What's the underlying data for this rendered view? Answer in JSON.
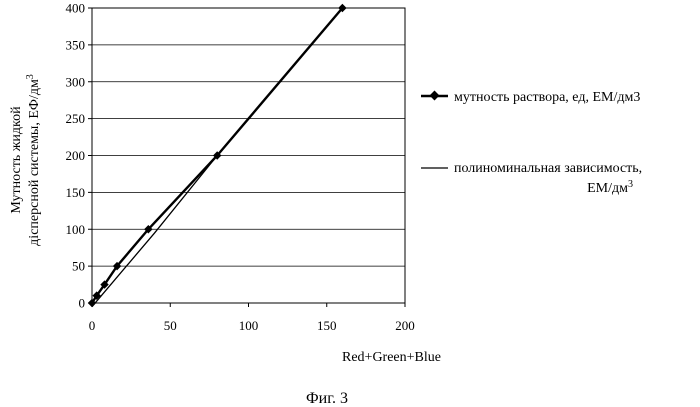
{
  "chart_data": {
    "type": "line",
    "xlabel": "Red+Green+Blue",
    "ylabel_line1": "Мутность жидкой",
    "ylabel_line2_prefix": "дісперсной системы, ЕФ/дм",
    "ylabel_line2_sup": "3",
    "xlim": [
      0,
      200
    ],
    "ylim": [
      0,
      400
    ],
    "xticks": [
      "0",
      "50",
      "100",
      "150",
      "200"
    ],
    "yticks": [
      "0",
      "50",
      "100",
      "150",
      "200",
      "250",
      "300",
      "350",
      "400"
    ],
    "grid": "horizontal",
    "legend_position": "right",
    "series": [
      {
        "name": "мутность раствора, ед, ЕМ/дм3",
        "marker": "diamond",
        "x": [
          0,
          3,
          8,
          16,
          36,
          80,
          160
        ],
        "y": [
          0,
          10,
          25,
          50,
          100,
          200,
          400
        ]
      },
      {
        "name_line1": "полиноминальная зависимость,",
        "name_line2_prefix": "ЕМ/дм",
        "name_line2_sup": "3",
        "marker": "none",
        "x": [
          0,
          40,
          80,
          120,
          160
        ],
        "y": [
          -5,
          95,
          200,
          300,
          400
        ]
      }
    ],
    "caption": "Фиг. 3"
  }
}
